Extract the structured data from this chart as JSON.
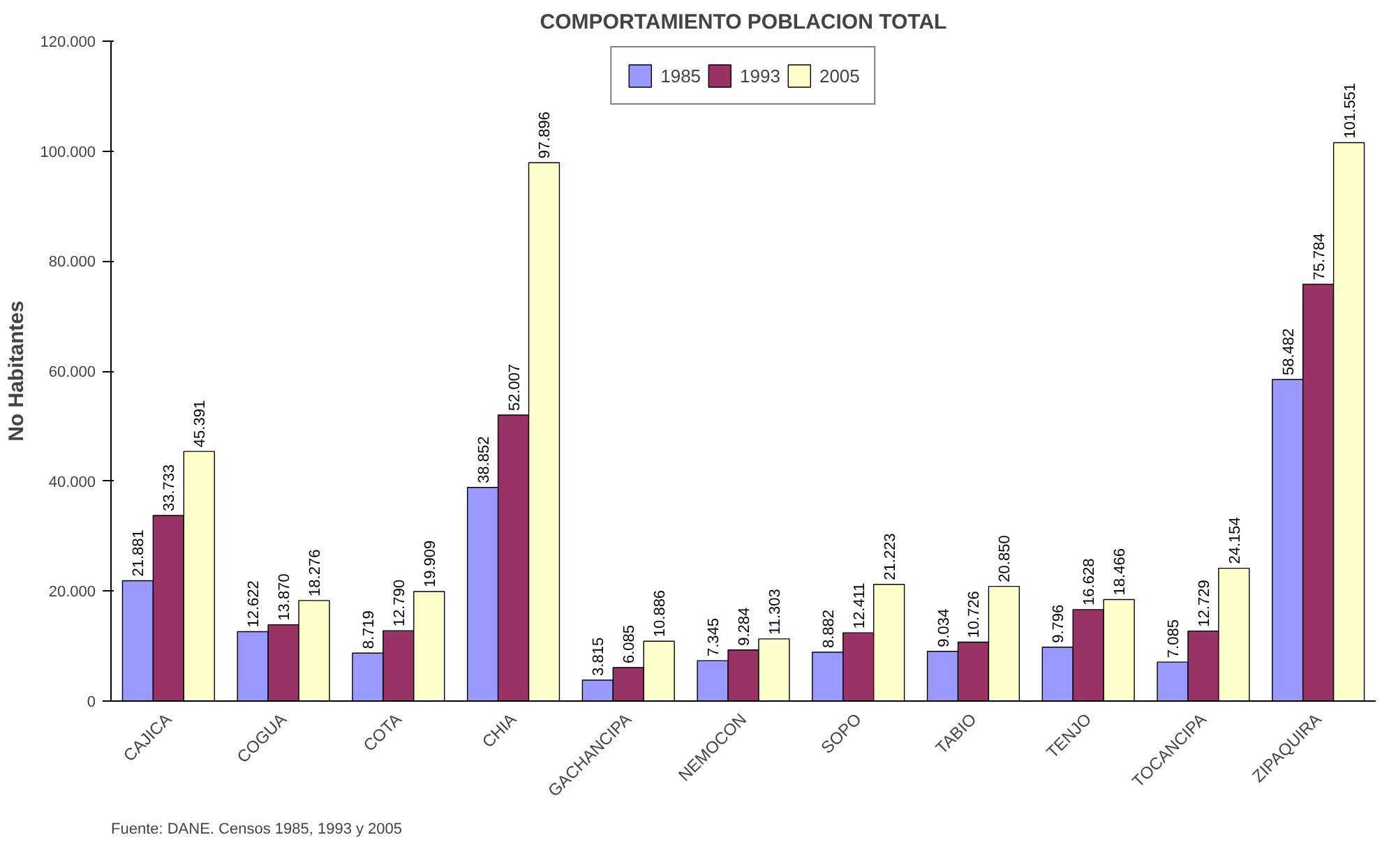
{
  "chart_data": {
    "type": "bar",
    "title": "COMPORTAMIENTO POBLACION TOTAL",
    "ylabel": "No Habitantes",
    "categories": [
      "CAJICA",
      "COGUA",
      "COTA",
      "CHIA",
      "GACHANCIPA",
      "NEMOCON",
      "SOPO",
      "TABIO",
      "TENJO",
      "TOCANCIPA",
      "ZIPAQUIRA"
    ],
    "series": [
      {
        "name": "1985",
        "color": "#9999ff",
        "values": [
          21881,
          12622,
          8719,
          38852,
          3815,
          7345,
          8882,
          9034,
          9796,
          7085,
          58482
        ],
        "value_labels": [
          "21.881",
          "12.622",
          "8.719",
          "38.852",
          "3.815",
          "7.345",
          "8.882",
          "9.034",
          "9.796",
          "7.085",
          "58.482"
        ]
      },
      {
        "name": "1993",
        "color": "#993366",
        "values": [
          33733,
          13870,
          12790,
          52007,
          6085,
          9284,
          12411,
          10726,
          16628,
          12729,
          75784
        ],
        "value_labels": [
          "33.733",
          "13.870",
          "12.790",
          "52.007",
          "6.085",
          "9.284",
          "12.411",
          "10.726",
          "16.628",
          "12.729",
          "75.784"
        ]
      },
      {
        "name": "2005",
        "color": "#ffffcc",
        "values": [
          45391,
          18276,
          19909,
          97896,
          10886,
          11303,
          21223,
          20850,
          18466,
          24154,
          101551
        ],
        "value_labels": [
          "45.391",
          "18.276",
          "19.909",
          "97.896",
          "10.886",
          "11.303",
          "21.223",
          "20.850",
          "18.466",
          "24.154",
          "101.551"
        ]
      }
    ],
    "ylim": [
      0,
      120000
    ],
    "yticks": [
      {
        "value": 0,
        "label": "0"
      },
      {
        "value": 20000,
        "label": "20.000"
      },
      {
        "value": 40000,
        "label": "40.000"
      },
      {
        "value": 60000,
        "label": "60.000"
      },
      {
        "value": 80000,
        "label": "80.000"
      },
      {
        "value": 100000,
        "label": "100.000"
      },
      {
        "value": 120000,
        "label": "120.000"
      }
    ],
    "grid": false,
    "legend": "top",
    "annotations": [
      "Fuente: DANE. Censos 1985, 1993 y 2005"
    ]
  }
}
